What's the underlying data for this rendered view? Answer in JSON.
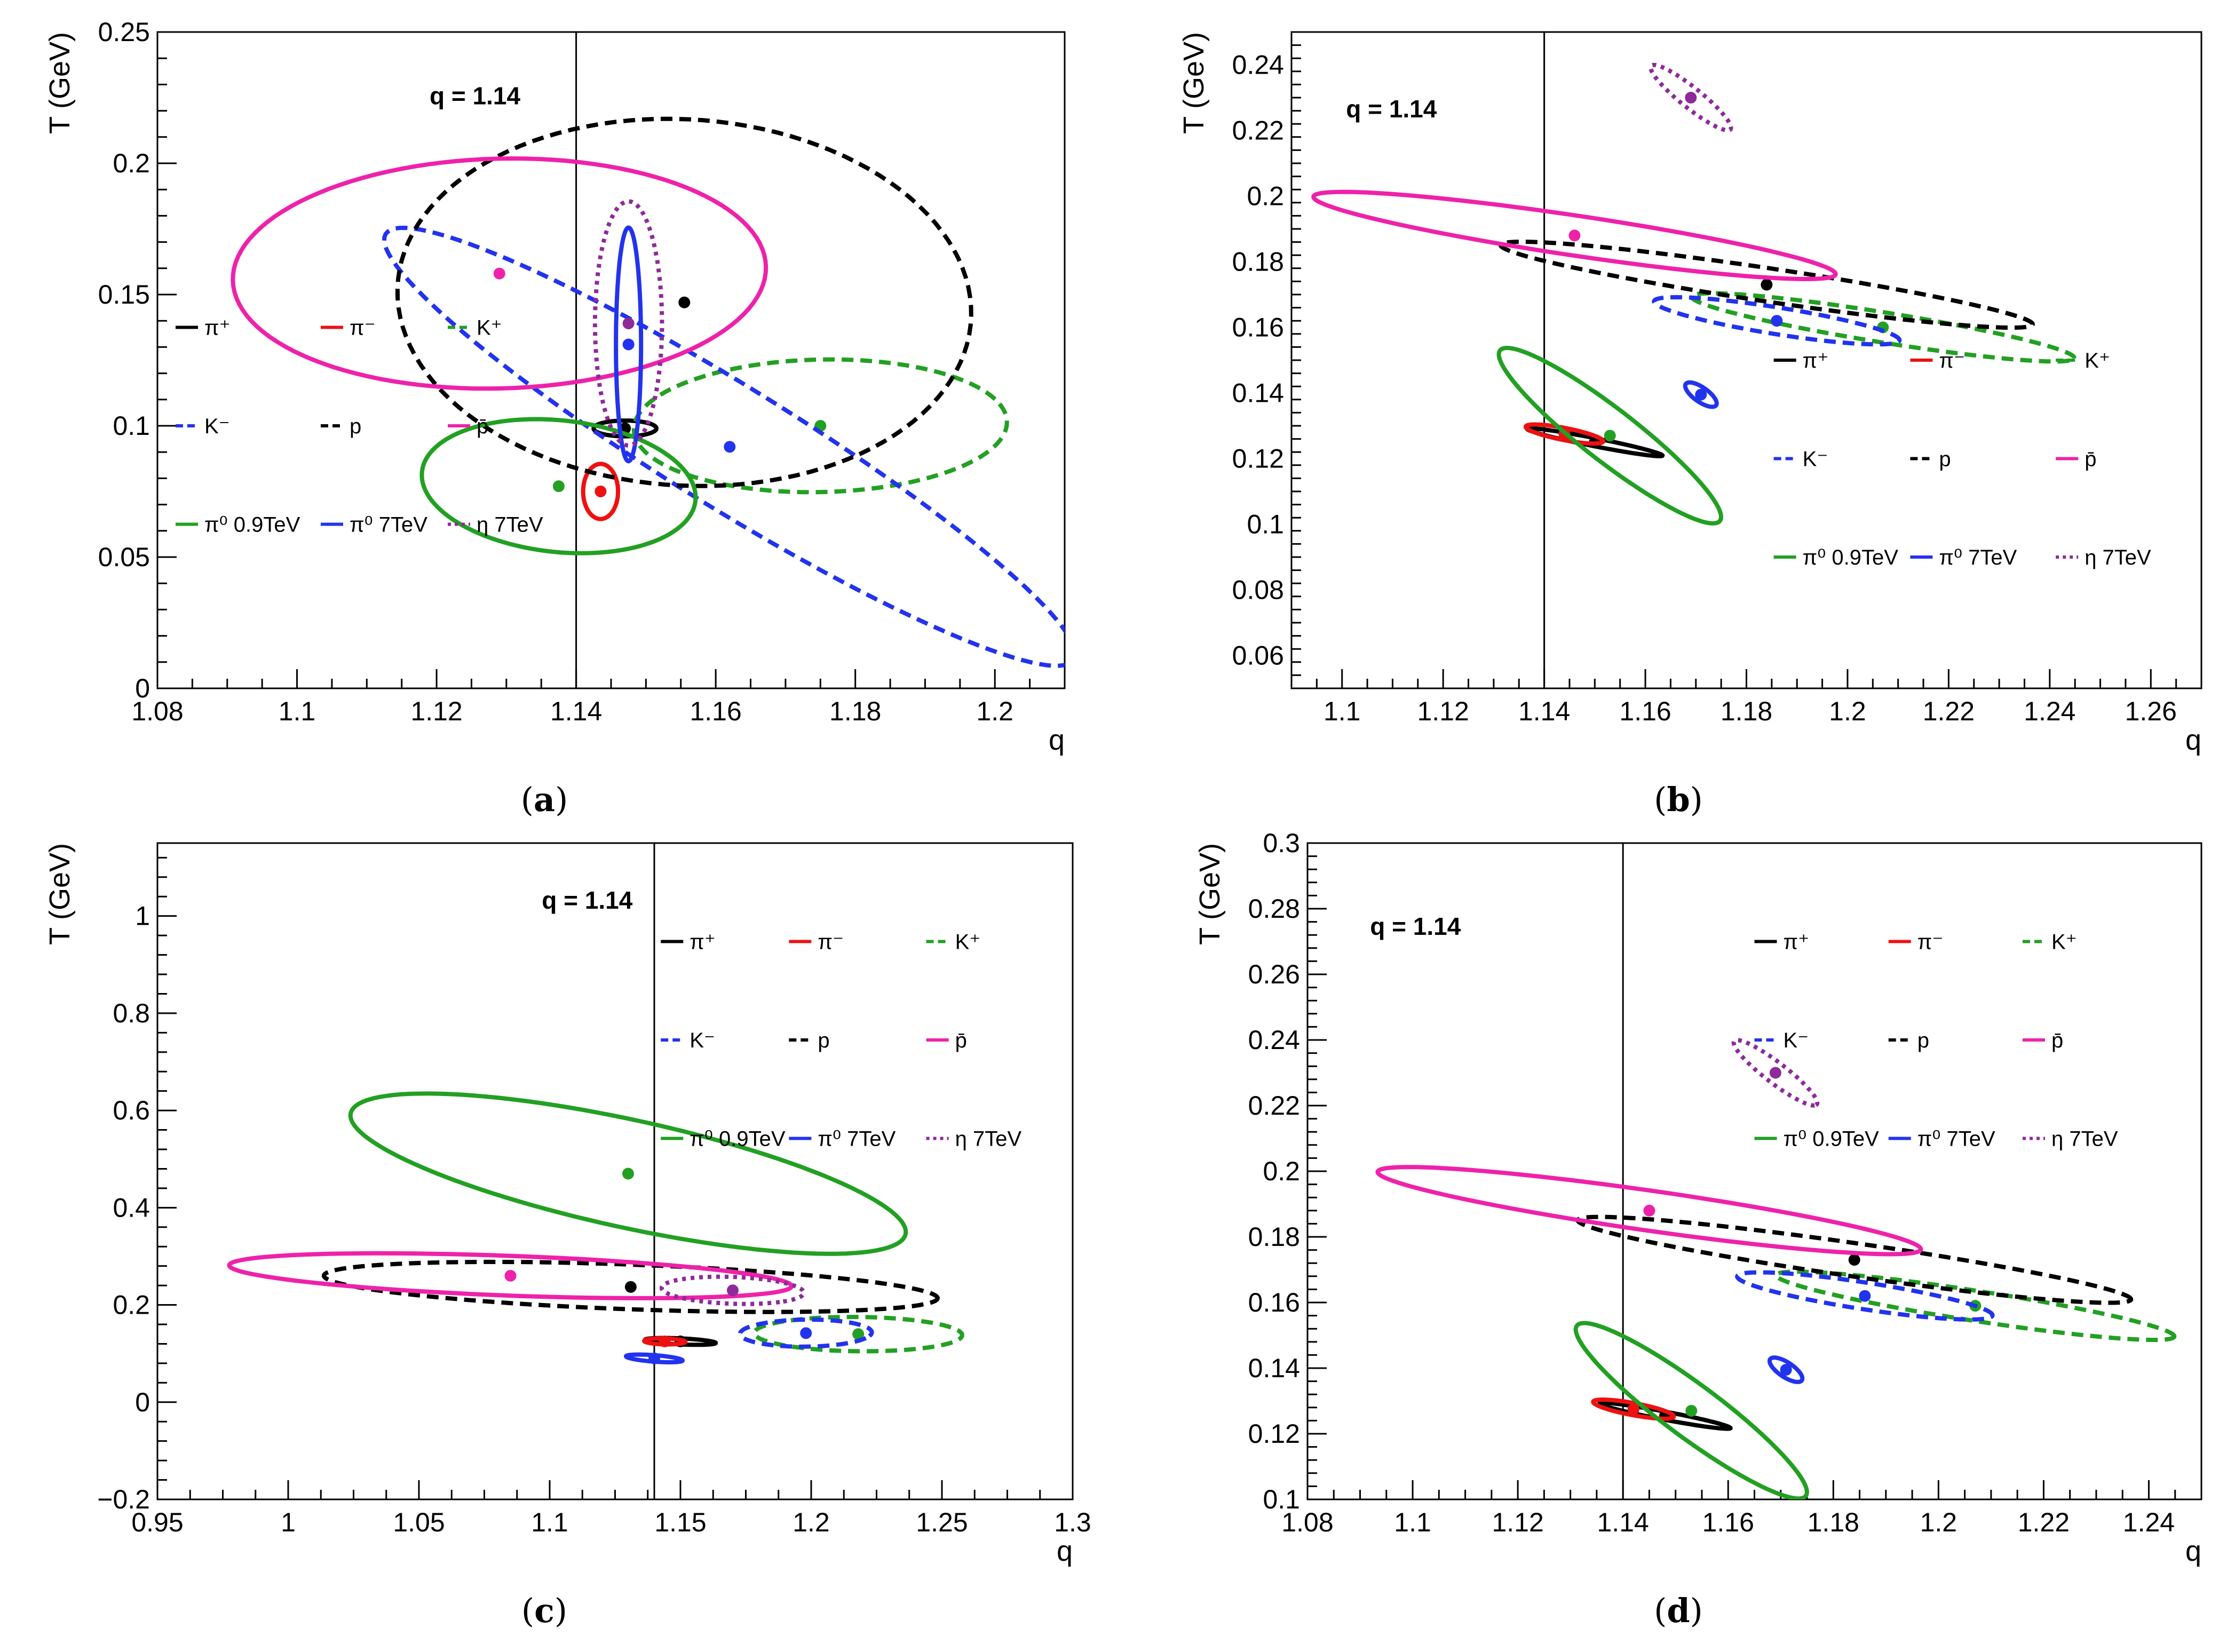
{
  "colors": {
    "pi_plus": "#000000",
    "pi_minus": "#ee1111",
    "K_plus": "#22a022",
    "K_minus": "#2233ee",
    "p": "#000000",
    "pbar": "#ee22aa",
    "pi0_09": "#22a022",
    "pi0_7": "#2233ee",
    "eta_7": "#8e2a9a"
  },
  "chart_data": [
    {
      "type": "scatter",
      "panel": "a",
      "caption": "(a)",
      "caption_letter": "a",
      "xlabel": "q",
      "ylabel": "T (GeV)",
      "annotation": "q = 1.14",
      "reference_line_q": 1.14,
      "xlim": [
        1.08,
        1.21
      ],
      "ylim": [
        0,
        0.25
      ],
      "xticks": [
        "1.08",
        "1.1",
        "1.12",
        "1.14",
        "1.16",
        "1.18",
        "1.2"
      ],
      "yticks": [
        "0",
        "0.05",
        "0.1",
        "0.15",
        "0.2",
        "0.25"
      ],
      "legend": [
        {
          "label": "π⁺",
          "key": "pi_plus",
          "dash": "solid"
        },
        {
          "label": "π⁻",
          "key": "pi_minus",
          "dash": "solid"
        },
        {
          "label": "K⁺",
          "key": "K_plus",
          "dash": "dash"
        },
        {
          "label": "K⁻",
          "key": "K_minus",
          "dash": "dash"
        },
        {
          "label": "p",
          "key": "p",
          "dash": "dash"
        },
        {
          "label": "p̄",
          "key": "pbar",
          "dash": "solid"
        },
        {
          "label": "π⁰ 0.9TeV",
          "key": "pi0_09",
          "dash": "solid"
        },
        {
          "label": "π⁰ 7TeV",
          "key": "pi0_7",
          "dash": "solid"
        },
        {
          "label": "η 7TeV",
          "key": "eta_7",
          "dash": "dot"
        }
      ],
      "series": [
        {
          "name": "π⁺",
          "key": "pi_plus",
          "dash": "solid",
          "center": [
            1.147,
            0.099
          ],
          "ellipse": {
            "rx": 0.0045,
            "ry": 0.003,
            "angle_deg": 0
          }
        },
        {
          "name": "π⁻",
          "key": "pi_minus",
          "dash": "solid",
          "center": [
            1.1435,
            0.075
          ],
          "ellipse": {
            "rx": 0.0025,
            "ry": 0.0105,
            "angle_deg": 0
          }
        },
        {
          "name": "K⁺",
          "key": "K_plus",
          "dash": "dash",
          "center": [
            1.175,
            0.1
          ],
          "ellipse": {
            "rx": 0.027,
            "ry": 0.025,
            "angle_deg": 22
          }
        },
        {
          "name": "K⁻",
          "key": "K_minus",
          "dash": "dash",
          "center": [
            1.162,
            0.092
          ],
          "ellipse": {
            "rx": 0.096,
            "ry": 0.014,
            "angle_deg": -60
          }
        },
        {
          "name": "p",
          "key": "p",
          "dash": "dash",
          "center": [
            1.1555,
            0.147
          ],
          "ellipse": {
            "rx": 0.041,
            "ry": 0.07,
            "angle_deg": 3
          }
        },
        {
          "name": "p̄",
          "key": "pbar",
          "dash": "solid",
          "center": [
            1.129,
            0.158
          ],
          "ellipse": {
            "rx": 0.038,
            "ry": 0.044,
            "angle_deg": -10
          }
        },
        {
          "name": "π⁰ 0.9TeV",
          "key": "pi0_09",
          "dash": "solid",
          "center": [
            1.1375,
            0.077
          ],
          "ellipse": {
            "rx": 0.019,
            "ry": 0.026,
            "angle_deg": 16
          }
        },
        {
          "name": "π⁰ 7TeV",
          "key": "pi0_7",
          "dash": "solid",
          "center": [
            1.1475,
            0.131
          ],
          "ellipse": {
            "rx": 0.0018,
            "ry": 0.0445,
            "angle_deg": 0
          }
        },
        {
          "name": "η 7TeV",
          "key": "eta_7",
          "dash": "dot",
          "center": [
            1.1475,
            0.139
          ],
          "ellipse": {
            "rx": 0.0048,
            "ry": 0.0465,
            "angle_deg": 0
          }
        }
      ]
    },
    {
      "type": "scatter",
      "panel": "b",
      "caption": "(b)",
      "caption_letter": "b",
      "xlabel": "q",
      "ylabel": "T (GeV)",
      "annotation": "q = 1.14",
      "reference_line_q": 1.14,
      "xlim": [
        1.09,
        1.27
      ],
      "ylim": [
        0.05,
        0.25
      ],
      "xticks": [
        "1.1",
        "1.12",
        "1.14",
        "1.16",
        "1.18",
        "1.2",
        "1.22",
        "1.24",
        "1.26"
      ],
      "yticks": [
        "0.06",
        "0.08",
        "0.1",
        "0.12",
        "0.14",
        "0.16",
        "0.18",
        "0.2",
        "0.22",
        "0.24"
      ],
      "legend": [
        {
          "label": "π⁺",
          "key": "pi_plus",
          "dash": "solid"
        },
        {
          "label": "π⁻",
          "key": "pi_minus",
          "dash": "solid"
        },
        {
          "label": "K⁺",
          "key": "K_plus",
          "dash": "dash"
        },
        {
          "label": "K⁻",
          "key": "K_minus",
          "dash": "dash"
        },
        {
          "label": "p",
          "key": "p",
          "dash": "dash"
        },
        {
          "label": "p̄",
          "key": "pbar",
          "dash": "solid"
        },
        {
          "label": "π⁰ 0.9TeV",
          "key": "pi0_09",
          "dash": "solid"
        },
        {
          "label": "π⁰ 7TeV",
          "key": "pi0_7",
          "dash": "solid"
        },
        {
          "label": "η 7TeV",
          "key": "eta_7",
          "dash": "dot"
        }
      ],
      "series": [
        {
          "name": "π⁺",
          "key": "pi_plus",
          "dash": "solid",
          "center": [
            1.15,
            0.125
          ],
          "ellipse": {
            "rx": 0.014,
            "ry": 0.0012,
            "angle_deg": -17
          }
        },
        {
          "name": "π⁻",
          "key": "pi_minus",
          "dash": "solid",
          "center": [
            1.144,
            0.1275
          ],
          "ellipse": {
            "rx": 0.008,
            "ry": 0.0018,
            "angle_deg": -17
          }
        },
        {
          "name": "K⁺",
          "key": "K_plus",
          "dash": "dash",
          "center": [
            1.207,
            0.16
          ],
          "ellipse": {
            "rx": 0.039,
            "ry": 0.0045,
            "angle_deg": -14
          }
        },
        {
          "name": "K⁻",
          "key": "K_minus",
          "dash": "dash",
          "center": [
            1.186,
            0.162
          ],
          "ellipse": {
            "rx": 0.025,
            "ry": 0.004,
            "angle_deg": -14
          }
        },
        {
          "name": "p",
          "key": "p",
          "dash": "dash",
          "center": [
            1.184,
            0.173
          ],
          "ellipse": {
            "rx": 0.054,
            "ry": 0.005,
            "angle_deg": -13
          }
        },
        {
          "name": "p̄",
          "key": "pbar",
          "dash": "solid",
          "center": [
            1.146,
            0.188
          ],
          "ellipse": {
            "rx": 0.053,
            "ry": 0.006,
            "angle_deg": -13
          }
        },
        {
          "name": "π⁰ 0.9TeV",
          "key": "pi0_09",
          "dash": "solid",
          "center": [
            1.153,
            0.127
          ],
          "ellipse": {
            "rx": 0.034,
            "ry": 0.0065,
            "angle_deg": -51
          }
        },
        {
          "name": "π⁰ 7TeV",
          "key": "pi0_7",
          "dash": "solid",
          "center": [
            1.171,
            0.1395
          ],
          "ellipse": {
            "rx": 0.0045,
            "ry": 0.0018,
            "angle_deg": -52
          }
        },
        {
          "name": "η 7TeV",
          "key": "eta_7",
          "dash": "dot",
          "center": [
            1.169,
            0.23
          ],
          "ellipse": {
            "rx": 0.0125,
            "ry": 0.0025,
            "angle_deg": -52
          }
        }
      ]
    },
    {
      "type": "scatter",
      "panel": "c",
      "caption": "(c)",
      "caption_letter": "c",
      "xlabel": "q",
      "ylabel": "T (GeV)",
      "annotation": "q = 1.14",
      "reference_line_q": 1.14,
      "xlim": [
        0.95,
        1.3
      ],
      "ylim": [
        -0.2,
        1.15
      ],
      "xticks": [
        "0.95",
        "1",
        "1.05",
        "1.1",
        "1.15",
        "1.2",
        "1.25",
        "1.3"
      ],
      "yticks": [
        "−0.2",
        "0",
        "0.2",
        "0.4",
        "0.6",
        "0.8",
        "1"
      ],
      "legend": [
        {
          "label": "π⁺",
          "key": "pi_plus",
          "dash": "solid"
        },
        {
          "label": "π⁻",
          "key": "pi_minus",
          "dash": "solid"
        },
        {
          "label": "K⁺",
          "key": "K_plus",
          "dash": "dash"
        },
        {
          "label": "K⁻",
          "key": "K_minus",
          "dash": "dash"
        },
        {
          "label": "p",
          "key": "p",
          "dash": "dash"
        },
        {
          "label": "p̄",
          "key": "pbar",
          "dash": "solid"
        },
        {
          "label": "π⁰ 0.9TeV",
          "key": "pi0_09",
          "dash": "solid"
        },
        {
          "label": "π⁰ 7TeV",
          "key": "pi0_7",
          "dash": "solid"
        },
        {
          "label": "η 7TeV",
          "key": "eta_7",
          "dash": "dot"
        }
      ],
      "series": [
        {
          "name": "π⁺",
          "key": "pi_plus",
          "dash": "solid",
          "center": [
            1.15,
            0.125
          ],
          "ellipse": {
            "rx": 0.014,
            "ry": 0.006,
            "angle_deg": -17
          }
        },
        {
          "name": "π⁻",
          "key": "pi_minus",
          "dash": "solid",
          "center": [
            1.144,
            0.125
          ],
          "ellipse": {
            "rx": 0.008,
            "ry": 0.006,
            "angle_deg": -17
          }
        },
        {
          "name": "K⁺",
          "key": "K_plus",
          "dash": "dash",
          "center": [
            1.218,
            0.14
          ],
          "ellipse": {
            "rx": 0.04,
            "ry": 0.035,
            "angle_deg": -14
          }
        },
        {
          "name": "K⁻",
          "key": "K_minus",
          "dash": "dash",
          "center": [
            1.198,
            0.142
          ],
          "ellipse": {
            "rx": 0.025,
            "ry": 0.028,
            "angle_deg": -14
          }
        },
        {
          "name": "p",
          "key": "p",
          "dash": "dash",
          "center": [
            1.131,
            0.237
          ],
          "ellipse": {
            "rx": 0.12,
            "ry": 0.045,
            "angle_deg": -13
          }
        },
        {
          "name": "p̄",
          "key": "pbar",
          "dash": "solid",
          "center": [
            1.085,
            0.26
          ],
          "ellipse": {
            "rx": 0.11,
            "ry": 0.04,
            "angle_deg": -13
          }
        },
        {
          "name": "π⁰ 0.9TeV",
          "key": "pi0_09",
          "dash": "solid",
          "center": [
            1.13,
            0.47
          ],
          "ellipse": {
            "rx": 0.185,
            "ry": 0.065,
            "angle_deg": -61
          }
        },
        {
          "name": "π⁰ 7TeV",
          "key": "pi0_7",
          "dash": "solid",
          "center": [
            1.14,
            0.09
          ],
          "ellipse": {
            "rx": 0.012,
            "ry": 0.006,
            "angle_deg": -30
          }
        },
        {
          "name": "η 7TeV",
          "key": "eta_7",
          "dash": "dot",
          "center": [
            1.17,
            0.23
          ],
          "ellipse": {
            "rx": 0.03,
            "ry": 0.025,
            "angle_deg": -50
          }
        }
      ]
    },
    {
      "type": "scatter",
      "panel": "d",
      "caption": "(d)",
      "caption_letter": "d",
      "xlabel": "q",
      "ylabel": "T (GeV)",
      "annotation": "q = 1.14",
      "reference_line_q": 1.14,
      "xlim": [
        1.08,
        1.25
      ],
      "ylim": [
        0.1,
        0.3
      ],
      "xticks": [
        "1.08",
        "1.1",
        "1.12",
        "1.14",
        "1.16",
        "1.18",
        "1.2",
        "1.22",
        "1.24"
      ],
      "yticks": [
        "0.1",
        "0.12",
        "0.14",
        "0.16",
        "0.18",
        "0.2",
        "0.22",
        "0.24",
        "0.26",
        "0.28",
        "0.3"
      ],
      "legend": [
        {
          "label": "π⁺",
          "key": "pi_plus",
          "dash": "solid"
        },
        {
          "label": "π⁻",
          "key": "pi_minus",
          "dash": "solid"
        },
        {
          "label": "K⁺",
          "key": "K_plus",
          "dash": "dash"
        },
        {
          "label": "K⁻",
          "key": "K_minus",
          "dash": "dash"
        },
        {
          "label": "p",
          "key": "p",
          "dash": "dash"
        },
        {
          "label": "p̄",
          "key": "pbar",
          "dash": "solid"
        },
        {
          "label": "π⁰ 0.9TeV",
          "key": "pi0_09",
          "dash": "solid"
        },
        {
          "label": "π⁰ 7TeV",
          "key": "pi0_7",
          "dash": "solid"
        },
        {
          "label": "η 7TeV",
          "key": "eta_7",
          "dash": "dot"
        }
      ],
      "series": [
        {
          "name": "π⁺",
          "key": "pi_plus",
          "dash": "solid",
          "center": [
            1.148,
            0.1255
          ],
          "ellipse": {
            "rx": 0.013,
            "ry": 0.0012,
            "angle_deg": -17
          }
        },
        {
          "name": "π⁻",
          "key": "pi_minus",
          "dash": "solid",
          "center": [
            1.142,
            0.1275
          ],
          "ellipse": {
            "rx": 0.008,
            "ry": 0.0018,
            "angle_deg": -17
          }
        },
        {
          "name": "K⁺",
          "key": "K_plus",
          "dash": "dash",
          "center": [
            1.207,
            0.159
          ],
          "ellipse": {
            "rx": 0.039,
            "ry": 0.0045,
            "angle_deg": -14
          }
        },
        {
          "name": "K⁻",
          "key": "K_minus",
          "dash": "dash",
          "center": [
            1.186,
            0.162
          ],
          "ellipse": {
            "rx": 0.025,
            "ry": 0.004,
            "angle_deg": -14
          }
        },
        {
          "name": "p",
          "key": "p",
          "dash": "dash",
          "center": [
            1.184,
            0.173
          ],
          "ellipse": {
            "rx": 0.054,
            "ry": 0.005,
            "angle_deg": -13
          }
        },
        {
          "name": "p̄",
          "key": "pbar",
          "dash": "solid",
          "center": [
            1.145,
            0.188
          ],
          "ellipse": {
            "rx": 0.053,
            "ry": 0.006,
            "angle_deg": -13
          }
        },
        {
          "name": "π⁰ 0.9TeV",
          "key": "pi0_09",
          "dash": "solid",
          "center": [
            1.153,
            0.127
          ],
          "ellipse": {
            "rx": 0.034,
            "ry": 0.0065,
            "angle_deg": -51
          }
        },
        {
          "name": "π⁰ 7TeV",
          "key": "pi0_7",
          "dash": "solid",
          "center": [
            1.171,
            0.1395
          ],
          "ellipse": {
            "rx": 0.0045,
            "ry": 0.0018,
            "angle_deg": -52
          }
        },
        {
          "name": "η 7TeV",
          "key": "eta_7",
          "dash": "dot",
          "center": [
            1.169,
            0.23
          ],
          "ellipse": {
            "rx": 0.0125,
            "ry": 0.0025,
            "angle_deg": -52
          }
        }
      ]
    }
  ]
}
